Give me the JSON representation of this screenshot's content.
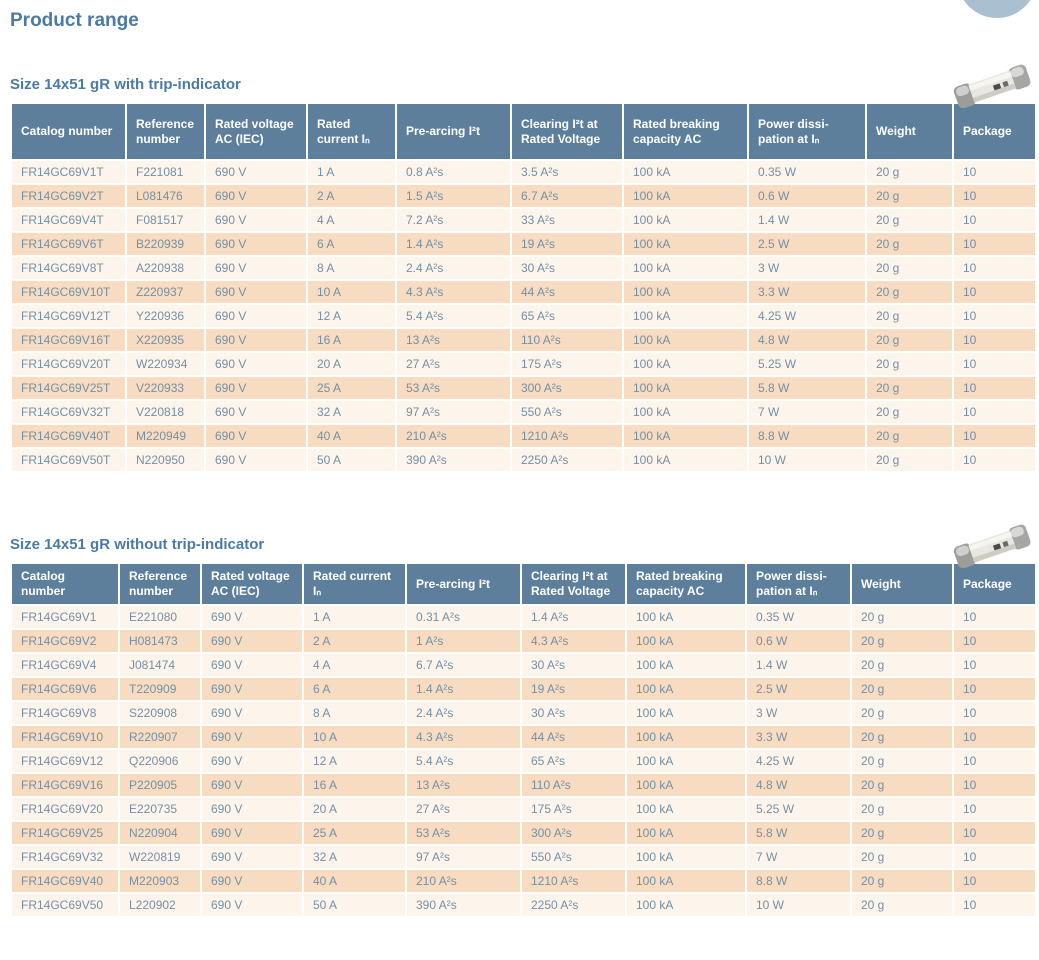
{
  "page": {
    "title": "Product range"
  },
  "colors": {
    "header_bg": "#5d7f9c",
    "title_text": "#4a7aa6",
    "cell_text": "#7390a6",
    "row_light": "#fdf4ec",
    "row_peach": "#f8dcc1",
    "decor_circle": "#aabfd0"
  },
  "icons": {
    "fuse_photo": "cylindrical fuse with metallic end caps"
  },
  "sections": [
    {
      "title": "Size 14x51 gR with trip-indicator",
      "columns": [
        "Catalog number",
        "Reference number",
        "Rated voltage AC (IEC)",
        "Rated current Iₙ",
        "Pre-arcing I²t",
        "Clearing I²t at Rated Voltage",
        "Rated breaking capacity AC",
        "Power dissi-pation at Iₙ",
        "Weight",
        "Package"
      ],
      "rows": [
        [
          "FR14GC69V1T",
          "F221081",
          "690 V",
          "1 A",
          "0.8 A²s",
          "3.5 A²s",
          "100 kA",
          "0.35 W",
          "20 g",
          "10"
        ],
        [
          "FR14GC69V2T",
          "L081476",
          "690 V",
          "2 A",
          "1.5 A²s",
          "6.7 A²s",
          "100 kA",
          "0.6 W",
          "20 g",
          "10"
        ],
        [
          "FR14GC69V4T",
          "F081517",
          "690 V",
          "4 A",
          "7.2 A²s",
          "33 A²s",
          "100 kA",
          "1.4 W",
          "20 g",
          "10"
        ],
        [
          "FR14GC69V6T",
          "B220939",
          "690 V",
          "6 A",
          "1.4 A²s",
          "19 A²s",
          "100 kA",
          "2.5 W",
          "20 g",
          "10"
        ],
        [
          "FR14GC69V8T",
          "A220938",
          "690 V",
          "8 A",
          "2.4 A²s",
          "30 A²s",
          "100 kA",
          "3 W",
          "20 g",
          "10"
        ],
        [
          "FR14GC69V10T",
          "Z220937",
          "690 V",
          "10 A",
          "4.3 A²s",
          "44 A²s",
          "100 kA",
          "3.3 W",
          "20 g",
          "10"
        ],
        [
          "FR14GC69V12T",
          "Y220936",
          "690 V",
          "12 A",
          "5.4 A²s",
          "65 A²s",
          "100 kA",
          "4.25 W",
          "20 g",
          "10"
        ],
        [
          "FR14GC69V16T",
          "X220935",
          "690 V",
          "16 A",
          "13 A²s",
          "110 A²s",
          "100 kA",
          "4.8 W",
          "20 g",
          "10"
        ],
        [
          "FR14GC69V20T",
          "W220934",
          "690 V",
          "20 A",
          "27 A²s",
          "175 A²s",
          "100 kA",
          "5.25 W",
          "20 g",
          "10"
        ],
        [
          "FR14GC69V25T",
          "V220933",
          "690 V",
          "25 A",
          "53 A²s",
          "300 A²s",
          "100 kA",
          "5.8 W",
          "20 g",
          "10"
        ],
        [
          "FR14GC69V32T",
          "V220818",
          "690 V",
          "32 A",
          "97 A²s",
          "550 A²s",
          "100 kA",
          "7 W",
          "20 g",
          "10"
        ],
        [
          "FR14GC69V40T",
          "M220949",
          "690 V",
          "40 A",
          "210 A²s",
          "1210 A²s",
          "100 kA",
          "8.8 W",
          "20 g",
          "10"
        ],
        [
          "FR14GC69V50T",
          "N220950",
          "690 V",
          "50 A",
          "390 A²s",
          "2250 A²s",
          "100 kA",
          "10 W",
          "20 g",
          "10"
        ]
      ]
    },
    {
      "title": "Size 14x51 gR without trip-indicator",
      "columns": [
        "Catalog number",
        "Reference number",
        "Rated voltage AC (IEC)",
        "Rated current Iₙ",
        "Pre-arcing I²t",
        "Clearing I²t at Rated Voltage",
        "Rated breaking capacity AC",
        "Power dissi-pation at Iₙ",
        "Weight",
        "Package"
      ],
      "rows": [
        [
          "FR14GC69V1",
          "E221080",
          "690 V",
          "1 A",
          "0.31 A²s",
          "1.4 A²s",
          "100 kA",
          "0.35 W",
          "20 g",
          "10"
        ],
        [
          "FR14GC69V2",
          "H081473",
          "690 V",
          "2 A",
          "1 A²s",
          "4.3 A²s",
          "100 kA",
          "0.6 W",
          "20 g",
          "10"
        ],
        [
          "FR14GC69V4",
          "J081474",
          "690 V",
          "4 A",
          "6.7 A²s",
          "30 A²s",
          "100 kA",
          "1.4 W",
          "20 g",
          "10"
        ],
        [
          "FR14GC69V6",
          "T220909",
          "690 V",
          "6 A",
          "1.4 A²s",
          "19 A²s",
          "100 kA",
          "2.5 W",
          "20 g",
          "10"
        ],
        [
          "FR14GC69V8",
          "S220908",
          "690 V",
          "8 A",
          "2.4 A²s",
          "30 A²s",
          "100 kA",
          "3 W",
          "20 g",
          "10"
        ],
        [
          "FR14GC69V10",
          "R220907",
          "690 V",
          "10 A",
          "4.3 A²s",
          "44 A²s",
          "100 kA",
          "3.3 W",
          "20 g",
          "10"
        ],
        [
          "FR14GC69V12",
          "Q220906",
          "690 V",
          "12 A",
          "5.4 A²s",
          "65 A²s",
          "100 kA",
          "4.25 W",
          "20 g",
          "10"
        ],
        [
          "FR14GC69V16",
          "P220905",
          "690 V",
          "16 A",
          "13 A²s",
          "110 A²s",
          "100 kA",
          "4.8 W",
          "20 g",
          "10"
        ],
        [
          "FR14GC69V20",
          "E220735",
          "690 V",
          "20 A",
          "27 A²s",
          "175 A²s",
          "100 kA",
          "5.25 W",
          "20 g",
          "10"
        ],
        [
          "FR14GC69V25",
          "N220904",
          "690 V",
          "25 A",
          "53 A²s",
          "300 A²s",
          "100 kA",
          "5.8 W",
          "20 g",
          "10"
        ],
        [
          "FR14GC69V32",
          "W220819",
          "690 V",
          "32 A",
          "97 A²s",
          "550 A²s",
          "100 kA",
          "7 W",
          "20 g",
          "10"
        ],
        [
          "FR14GC69V40",
          "M220903",
          "690 V",
          "40 A",
          "210 A²s",
          "1210 A²s",
          "100 kA",
          "8.8 W",
          "20 g",
          "10"
        ],
        [
          "FR14GC69V50",
          "L220902",
          "690 V",
          "50 A",
          "390 A²s",
          "2250 A²s",
          "100 kA",
          "10 W",
          "20 g",
          "10"
        ]
      ]
    }
  ]
}
